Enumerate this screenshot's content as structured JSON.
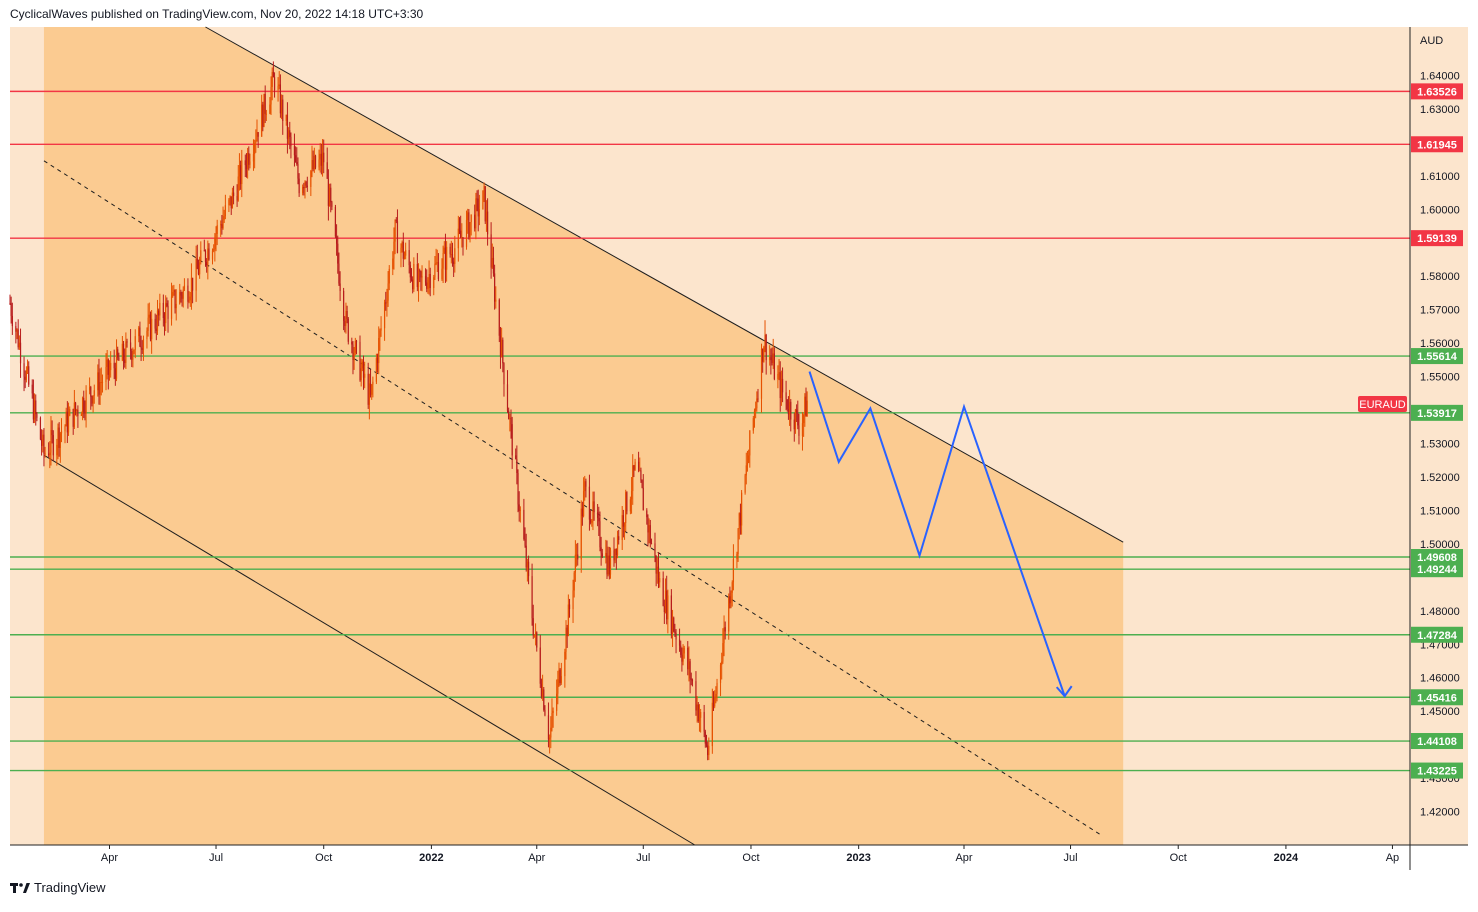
{
  "header": {
    "publisher_line": "CyclicalWaves published on TradingView.com, Nov 20, 2022 14:18 UTC+3:30"
  },
  "footer": {
    "brand": "TradingView",
    "logo_icon": "tradingview-logo-icon"
  },
  "colors": {
    "background": "#fce5cd",
    "channel_fill": "#fbcb91",
    "resistance": "#f23645",
    "support": "#4caf50",
    "forecast": "#2962ff",
    "candle": "#b71c1c",
    "candle_up": "#e65100",
    "symbol_badge": "#f23645"
  },
  "chart_data": {
    "type": "candlestick",
    "symbol": "EURAUD",
    "currency": "AUD",
    "y_axis": {
      "range": [
        1.41,
        1.6545
      ],
      "ticks": [
        "1.64000",
        "1.63000",
        "1.61000",
        "1.60000",
        "1.58000",
        "1.57000",
        "1.56000",
        "1.55000",
        "1.53000",
        "1.52000",
        "1.51000",
        "1.50000",
        "1.48000",
        "1.47000",
        "1.46000",
        "1.45000",
        "1.43000",
        "1.42000"
      ]
    },
    "x_axis": {
      "range": [
        "2021-01-06",
        "2024-04-16"
      ],
      "ticks": [
        {
          "date": "2021-04-01",
          "label": "Apr",
          "bold": false
        },
        {
          "date": "2021-07-01",
          "label": "Jul",
          "bold": false
        },
        {
          "date": "2021-10-01",
          "label": "Oct",
          "bold": false
        },
        {
          "date": "2022-01-01",
          "label": "2022",
          "bold": true
        },
        {
          "date": "2022-04-01",
          "label": "Apr",
          "bold": false
        },
        {
          "date": "2022-07-01",
          "label": "Jul",
          "bold": false
        },
        {
          "date": "2022-10-01",
          "label": "Oct",
          "bold": false
        },
        {
          "date": "2023-01-01",
          "label": "2023",
          "bold": true
        },
        {
          "date": "2023-04-01",
          "label": "Apr",
          "bold": false
        },
        {
          "date": "2023-07-01",
          "label": "Jul",
          "bold": false
        },
        {
          "date": "2023-10-01",
          "label": "Oct",
          "bold": false
        },
        {
          "date": "2024-01-01",
          "label": "2024",
          "bold": true
        },
        {
          "date": "2024-04-01",
          "label": "Ap",
          "bold": false
        }
      ]
    },
    "levels": [
      {
        "price": 1.63526,
        "label": "1.63526",
        "kind": "resistance"
      },
      {
        "price": 1.61945,
        "label": "1.61945",
        "kind": "resistance"
      },
      {
        "price": 1.59139,
        "label": "1.59139",
        "kind": "resistance"
      },
      {
        "price": 1.55614,
        "label": "1.55614",
        "kind": "support"
      },
      {
        "price": 1.53917,
        "label": "1.53917",
        "kind": "support"
      },
      {
        "price": 1.49608,
        "label": "1.49608",
        "kind": "support"
      },
      {
        "price": 1.49244,
        "label": "1.49244",
        "kind": "support"
      },
      {
        "price": 1.47284,
        "label": "1.47284",
        "kind": "support"
      },
      {
        "price": 1.45416,
        "label": "1.45416",
        "kind": "support"
      },
      {
        "price": 1.44108,
        "label": "1.44108",
        "kind": "support"
      },
      {
        "price": 1.43225,
        "label": "1.43225",
        "kind": "support"
      }
    ],
    "channel": {
      "upper": [
        {
          "date": "2021-06-22",
          "price": 1.6545
        },
        {
          "date": "2023-08-15",
          "price": 1.5005
        }
      ],
      "lower": [
        {
          "date": "2021-02-04",
          "price": 1.5265
        },
        {
          "date": "2022-08-14",
          "price": 1.41
        }
      ],
      "mid": [
        {
          "date": "2021-02-04",
          "price": 1.6145
        },
        {
          "date": "2023-07-27",
          "price": 1.413
        }
      ],
      "shade_end": "2023-08-15"
    },
    "forecast_path": [
      {
        "date": "2022-11-20",
        "price": 1.5515
      },
      {
        "date": "2022-12-15",
        "price": 1.5245
      },
      {
        "date": "2023-01-11",
        "price": 1.5405
      },
      {
        "date": "2023-02-22",
        "price": 1.4965
      },
      {
        "date": "2023-04-01",
        "price": 1.541
      },
      {
        "date": "2023-06-26",
        "price": 1.4545
      }
    ],
    "price_anchors": [
      {
        "date": "2021-01-06",
        "price": 1.572
      },
      {
        "date": "2021-02-04",
        "price": 1.527
      },
      {
        "date": "2021-03-10",
        "price": 1.543
      },
      {
        "date": "2021-05-01",
        "price": 1.563
      },
      {
        "date": "2021-06-10",
        "price": 1.578
      },
      {
        "date": "2021-07-15",
        "price": 1.603
      },
      {
        "date": "2021-08-20",
        "price": 1.639
      },
      {
        "date": "2021-09-10",
        "price": 1.608
      },
      {
        "date": "2021-10-01",
        "price": 1.615
      },
      {
        "date": "2021-10-20",
        "price": 1.566
      },
      {
        "date": "2021-11-10",
        "price": 1.543
      },
      {
        "date": "2021-12-01",
        "price": 1.593
      },
      {
        "date": "2021-12-20",
        "price": 1.577
      },
      {
        "date": "2022-01-20",
        "price": 1.588
      },
      {
        "date": "2022-02-15",
        "price": 1.603
      },
      {
        "date": "2022-03-10",
        "price": 1.533
      },
      {
        "date": "2022-03-30",
        "price": 1.473
      },
      {
        "date": "2022-04-12",
        "price": 1.442
      },
      {
        "date": "2022-04-28",
        "price": 1.478
      },
      {
        "date": "2022-05-12",
        "price": 1.516
      },
      {
        "date": "2022-06-02",
        "price": 1.493
      },
      {
        "date": "2022-06-25",
        "price": 1.523
      },
      {
        "date": "2022-07-15",
        "price": 1.488
      },
      {
        "date": "2022-08-10",
        "price": 1.461
      },
      {
        "date": "2022-08-25",
        "price": 1.438
      },
      {
        "date": "2022-09-15",
        "price": 1.491
      },
      {
        "date": "2022-10-01",
        "price": 1.532
      },
      {
        "date": "2022-10-12",
        "price": 1.561
      },
      {
        "date": "2022-10-28",
        "price": 1.545
      },
      {
        "date": "2022-11-12",
        "price": 1.535
      },
      {
        "date": "2022-11-20",
        "price": 1.545
      }
    ]
  }
}
